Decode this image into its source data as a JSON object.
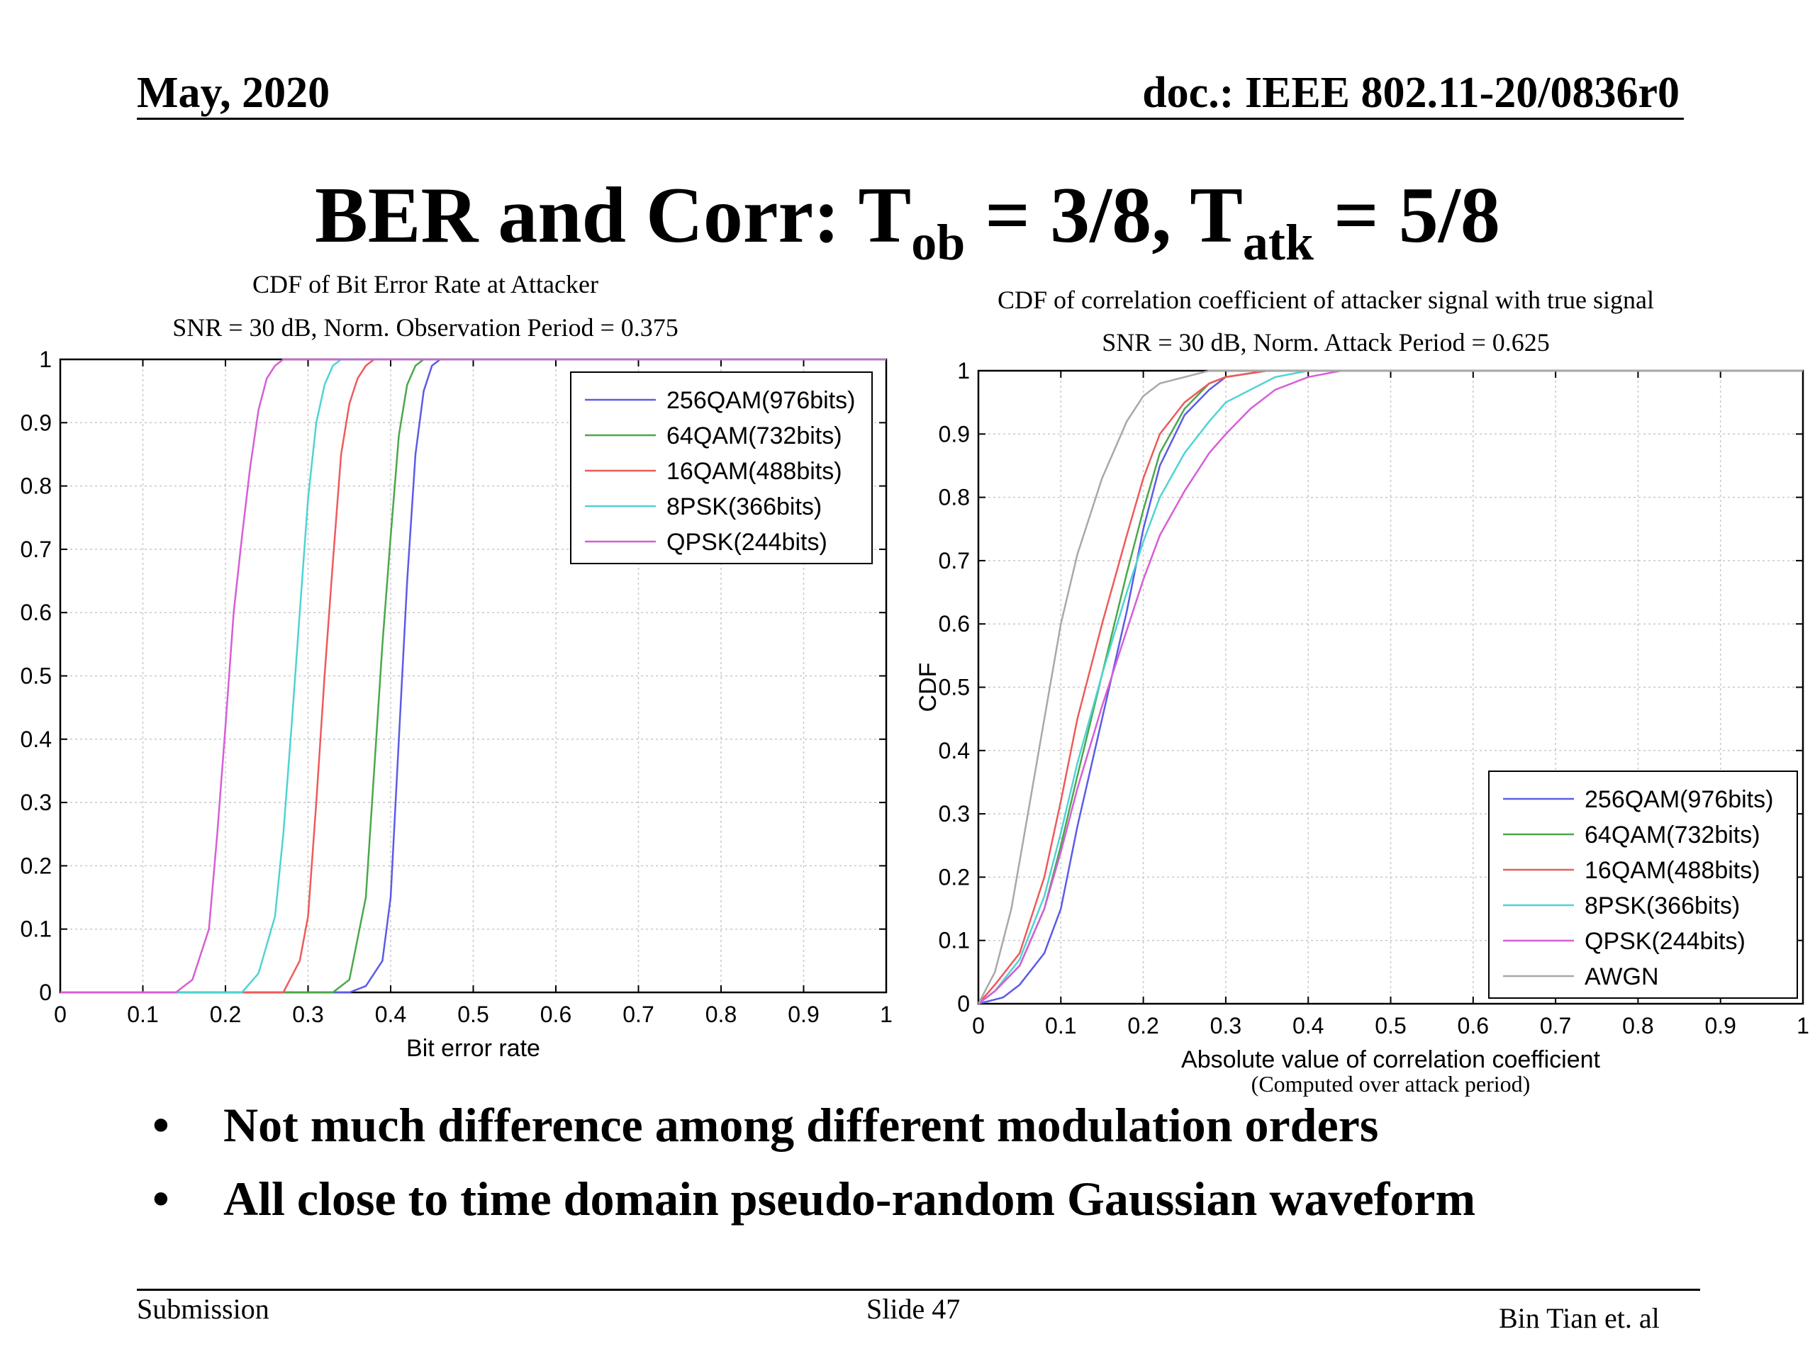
{
  "header": {
    "date": "May, 2020",
    "doc": "doc.: IEEE 802.11-20/0836r0"
  },
  "title": {
    "main": "BER and Corr: T",
    "sub1": "ob",
    "mid": " = 3/8, T",
    "sub2": "atk",
    "end": " = 5/8"
  },
  "bullets": [
    "Not much difference among different modulation orders",
    "All close to time domain pseudo-random Gaussian waveform"
  ],
  "bullet_marker": "•",
  "footer": {
    "left": "Submission",
    "center": "Slide 47",
    "right": "Bin Tian et. al"
  },
  "colors": {
    "256QAM": "#5b5be8",
    "64QAM": "#4aa84a",
    "16QAM": "#ee5a5a",
    "8PSK": "#4fd3d3",
    "QPSK": "#d65ed6",
    "AWGN": "#a8a8a8",
    "grid": "#c8c8c8"
  },
  "chart_data": [
    {
      "type": "line",
      "title": "CDF of Bit Error Rate at Attacker",
      "subtitle": "SNR = 30 dB, Norm. Observation Period = 0.375",
      "xlabel": "Bit error rate",
      "ylabel": "",
      "xlim": [
        0,
        1
      ],
      "ylim": [
        0,
        1
      ],
      "xticks": [
        "0",
        "0.1",
        "0.2",
        "0.3",
        "0.4",
        "0.5",
        "0.6",
        "0.7",
        "0.8",
        "0.9",
        "1"
      ],
      "yticks": [
        "0",
        "0.1",
        "0.2",
        "0.3",
        "0.4",
        "0.5",
        "0.6",
        "0.7",
        "0.8",
        "0.9",
        "1"
      ],
      "grid": true,
      "legend": "top-right",
      "series": [
        {
          "name": "256QAM(976bits)",
          "x": [
            0,
            0.35,
            0.37,
            0.39,
            0.4,
            0.41,
            0.42,
            0.43,
            0.44,
            0.45,
            0.46,
            1
          ],
          "y": [
            0,
            0,
            0.01,
            0.05,
            0.15,
            0.4,
            0.65,
            0.85,
            0.95,
            0.99,
            1,
            1
          ]
        },
        {
          "name": "64QAM(732bits)",
          "x": [
            0,
            0.33,
            0.35,
            0.37,
            0.38,
            0.39,
            0.4,
            0.41,
            0.42,
            0.43,
            0.44,
            1
          ],
          "y": [
            0,
            0,
            0.02,
            0.15,
            0.35,
            0.55,
            0.72,
            0.88,
            0.96,
            0.99,
            1,
            1
          ]
        },
        {
          "name": "16QAM(488bits)",
          "x": [
            0,
            0.27,
            0.29,
            0.3,
            0.31,
            0.32,
            0.33,
            0.34,
            0.35,
            0.36,
            0.37,
            0.38,
            1
          ],
          "y": [
            0,
            0,
            0.05,
            0.12,
            0.3,
            0.5,
            0.68,
            0.85,
            0.93,
            0.97,
            0.99,
            1,
            1
          ]
        },
        {
          "name": "8PSK(366bits)",
          "x": [
            0,
            0.22,
            0.24,
            0.26,
            0.27,
            0.28,
            0.29,
            0.3,
            0.31,
            0.32,
            0.33,
            0.34,
            1
          ],
          "y": [
            0,
            0,
            0.03,
            0.12,
            0.25,
            0.42,
            0.6,
            0.78,
            0.9,
            0.96,
            0.99,
            1,
            1
          ]
        },
        {
          "name": "QPSK(244bits)",
          "x": [
            0,
            0.14,
            0.16,
            0.18,
            0.19,
            0.2,
            0.21,
            0.22,
            0.23,
            0.24,
            0.25,
            0.26,
            0.27,
            1
          ],
          "y": [
            0,
            0,
            0.02,
            0.1,
            0.25,
            0.42,
            0.6,
            0.72,
            0.83,
            0.92,
            0.97,
            0.99,
            1,
            1
          ]
        }
      ]
    },
    {
      "type": "line",
      "title": "CDF of correlation coefficient of attacker signal with true signal",
      "subtitle": "SNR = 30 dB, Norm. Attack Period = 0.625",
      "xlabel": "Absolute value of correlation coefficient",
      "xlabel_note": "(Computed over attack period)",
      "ylabel": "CDF",
      "xlim": [
        0,
        1
      ],
      "ylim": [
        0,
        1
      ],
      "xticks": [
        "0",
        "0.1",
        "0.2",
        "0.3",
        "0.4",
        "0.5",
        "0.6",
        "0.7",
        "0.8",
        "0.9",
        "1"
      ],
      "yticks": [
        "0",
        "0.1",
        "0.2",
        "0.3",
        "0.4",
        "0.5",
        "0.6",
        "0.7",
        "0.8",
        "0.9",
        "1"
      ],
      "grid": true,
      "legend": "bottom-right",
      "series": [
        {
          "name": "256QAM(976bits)",
          "x": [
            0,
            0.03,
            0.05,
            0.08,
            0.1,
            0.12,
            0.15,
            0.18,
            0.2,
            0.22,
            0.25,
            0.28,
            0.3,
            0.35,
            1
          ],
          "y": [
            0,
            0.01,
            0.03,
            0.08,
            0.15,
            0.28,
            0.45,
            0.62,
            0.75,
            0.85,
            0.93,
            0.97,
            0.99,
            1,
            1
          ]
        },
        {
          "name": "64QAM(732bits)",
          "x": [
            0,
            0.02,
            0.05,
            0.08,
            0.1,
            0.12,
            0.15,
            0.18,
            0.2,
            0.22,
            0.25,
            0.28,
            0.3,
            0.35,
            1
          ],
          "y": [
            0,
            0.02,
            0.06,
            0.15,
            0.25,
            0.36,
            0.52,
            0.68,
            0.78,
            0.87,
            0.94,
            0.98,
            0.99,
            1,
            1
          ]
        },
        {
          "name": "16QAM(488bits)",
          "x": [
            0,
            0.02,
            0.05,
            0.08,
            0.1,
            0.12,
            0.15,
            0.18,
            0.2,
            0.22,
            0.25,
            0.28,
            0.3,
            0.35,
            1
          ],
          "y": [
            0,
            0.03,
            0.08,
            0.2,
            0.32,
            0.45,
            0.6,
            0.74,
            0.83,
            0.9,
            0.95,
            0.98,
            0.99,
            1,
            1
          ]
        },
        {
          "name": "8PSK(366bits)",
          "x": [
            0,
            0.02,
            0.05,
            0.08,
            0.1,
            0.12,
            0.15,
            0.18,
            0.2,
            0.22,
            0.25,
            0.28,
            0.3,
            0.33,
            0.36,
            0.4,
            1
          ],
          "y": [
            0,
            0.02,
            0.07,
            0.17,
            0.27,
            0.38,
            0.52,
            0.65,
            0.73,
            0.8,
            0.87,
            0.92,
            0.95,
            0.97,
            0.99,
            1,
            1
          ]
        },
        {
          "name": "QPSK(244bits)",
          "x": [
            0,
            0.02,
            0.05,
            0.08,
            0.1,
            0.12,
            0.15,
            0.18,
            0.2,
            0.22,
            0.25,
            0.28,
            0.3,
            0.33,
            0.36,
            0.4,
            0.44,
            1
          ],
          "y": [
            0,
            0.02,
            0.06,
            0.15,
            0.24,
            0.34,
            0.47,
            0.59,
            0.67,
            0.74,
            0.81,
            0.87,
            0.9,
            0.94,
            0.97,
            0.99,
            1,
            1
          ]
        },
        {
          "name": "AWGN",
          "x": [
            0,
            0.02,
            0.04,
            0.06,
            0.08,
            0.1,
            0.12,
            0.15,
            0.18,
            0.2,
            0.22,
            0.25,
            0.28,
            0.3,
            1
          ],
          "y": [
            0,
            0.05,
            0.15,
            0.3,
            0.45,
            0.6,
            0.71,
            0.83,
            0.92,
            0.96,
            0.98,
            0.99,
            1,
            1,
            1
          ]
        }
      ]
    }
  ]
}
